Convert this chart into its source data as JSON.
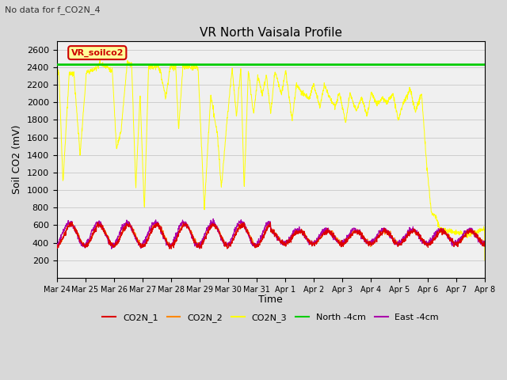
{
  "title": "VR North Vaisala Profile",
  "subtitle": "No data for f_CO2N_4",
  "ylabel": "Soil CO2 (mV)",
  "xlabel": "Time",
  "ylim": [
    0,
    2700
  ],
  "yticks": [
    200,
    400,
    600,
    800,
    1000,
    1200,
    1400,
    1600,
    1800,
    2000,
    2200,
    2400,
    2600
  ],
  "annotation_label": "VR_soilco2",
  "annotation_color": "#cc0000",
  "annotation_box_color": "#ffff99",
  "green_line_y": 2430,
  "green_line_color": "#00cc00",
  "colors": {
    "CO2N_1": "#dd0000",
    "CO2N_2": "#ff8800",
    "CO2N_3": "#ffff00",
    "North_4cm": "#00cc00",
    "East_4cm": "#aa00aa"
  },
  "legend_labels": [
    "CO2N_1",
    "CO2N_2",
    "CO2N_3",
    "North -4cm",
    "East -4cm"
  ],
  "legend_colors": [
    "#dd0000",
    "#ff8800",
    "#ffff00",
    "#00cc00",
    "#aa00aa"
  ],
  "date_labels": [
    "Mar 24",
    "Mar 25",
    "Mar 26",
    "Mar 27",
    "Mar 28",
    "Mar 29",
    "Mar 30",
    "Mar 31",
    "Apr 1",
    "Apr 2",
    "Apr 3",
    "Apr 4",
    "Apr 5",
    "Apr 6",
    "Apr 7",
    "Apr 8"
  ],
  "background_color": "#d8d8d8",
  "plot_bg_color": "#f0f0f0",
  "grid_color": "#c0c0c0"
}
